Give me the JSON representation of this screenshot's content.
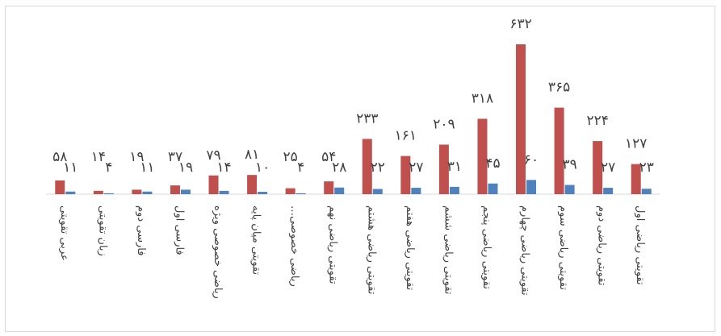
{
  "chart_data": {
    "type": "bar",
    "categories": [
      "عربی تقویتی",
      "زبان تقویتی",
      "فارسی دوم",
      "فارسی اول",
      "ریاضی خصوصی ویژه",
      "تقویتی میان پایه",
      "ریاضی خصوصی…",
      "تقویتی ریاضی نهم",
      "تقویتی ریاضی هشتم",
      "تقویتی ریاضی هفتم",
      "تقویتی ریاضی ششم",
      "تقویتی ریاضی پنجم",
      "تقویتی ریاضی چهارم",
      "تقویتی ریاضی سوم",
      "تقویتی ریاضی دوم",
      "تقویتی ریاضی اول"
    ],
    "series": [
      {
        "color": "#c0504d",
        "values": [
          58,
          14,
          19,
          37,
          79,
          81,
          25,
          54,
          233,
          161,
          209,
          318,
          632,
          365,
          224,
          127
        ],
        "labels": [
          "۵۸",
          "۱۴",
          "۱۹",
          "۳۷",
          "۷۹",
          "۸۱",
          "۲۵",
          "۵۴",
          "۲۳۳",
          "۱۶۱",
          "۲۰۹",
          "۳۱۸",
          "۶۳۲",
          "۳۶۵",
          "۲۲۴",
          "۱۲۷"
        ]
      },
      {
        "color": "#4f81bd",
        "values": [
          11,
          4,
          11,
          19,
          14,
          10,
          4,
          28,
          22,
          27,
          31,
          45,
          60,
          39,
          27,
          23
        ],
        "labels": [
          "۱۱",
          "۴",
          "۱۱",
          "۱۹",
          "۱۴",
          "۱۰",
          "۴",
          "۲۸",
          "۲۲",
          "۲۷",
          "۳۱",
          "۴۵",
          "۶۰",
          "۳۹",
          "۲۷",
          "۲۳"
        ]
      }
    ],
    "ylim": [
      0,
      632
    ],
    "grid": false,
    "legend": "none"
  }
}
